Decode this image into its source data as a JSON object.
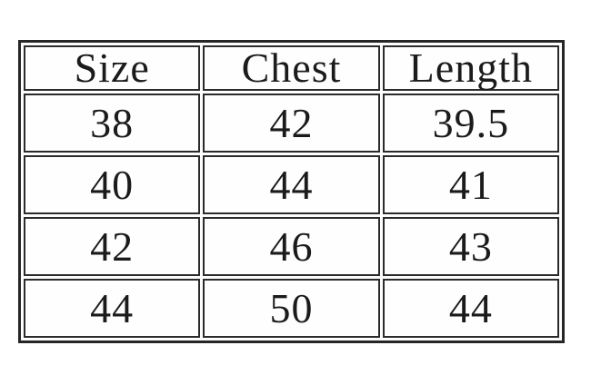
{
  "chart_data": {
    "type": "table",
    "title": "",
    "columns": [
      "Size",
      "Chest",
      "Length"
    ],
    "rows": [
      [
        "38",
        "42",
        "39.5"
      ],
      [
        "40",
        "44",
        "41"
      ],
      [
        "42",
        "46",
        "43"
      ],
      [
        "44",
        "50",
        "44"
      ]
    ]
  },
  "colors": {
    "background": "#ffffff",
    "cell_background": "#fefefe",
    "border": "#2b2b2b",
    "text": "#1b1b1b"
  }
}
